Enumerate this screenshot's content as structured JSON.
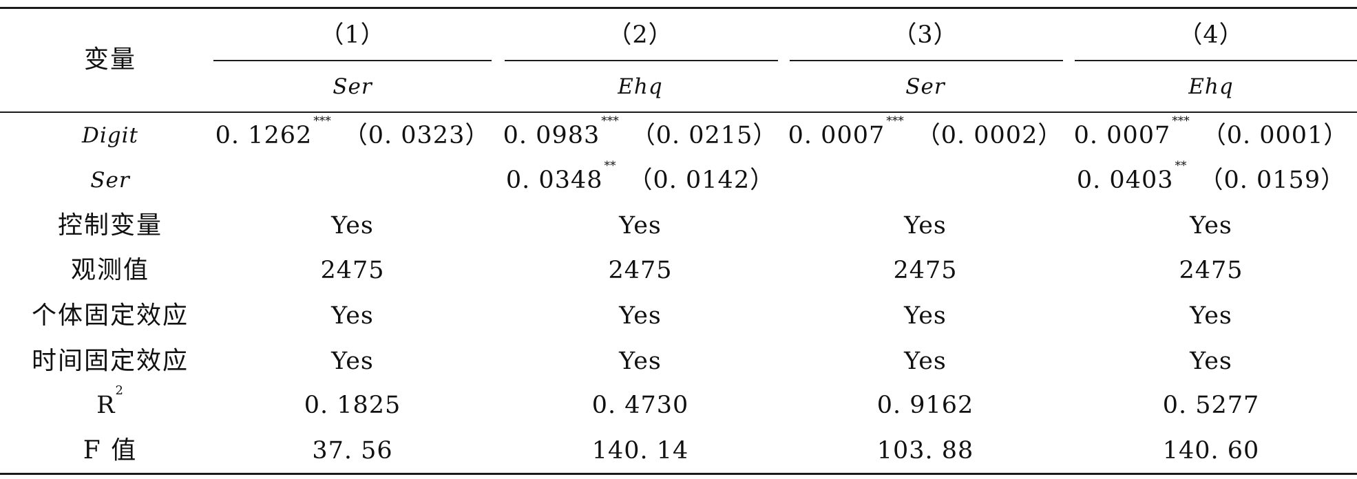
{
  "header": {
    "variable_label": "变量",
    "columns": [
      {
        "number": "（1）",
        "dependent": "Ser"
      },
      {
        "number": "（2）",
        "dependent": "Ehq"
      },
      {
        "number": "（3）",
        "dependent": "Ser"
      },
      {
        "number": "（4）",
        "dependent": "Ehq"
      }
    ]
  },
  "rows": {
    "digit": {
      "label": "Digit",
      "cells": [
        {
          "coef": "0. 1262",
          "stars": "***",
          "se": "（0. 0323）"
        },
        {
          "coef": "0. 0983",
          "stars": "***",
          "se": "（0. 0215）"
        },
        {
          "coef": "0. 0007",
          "stars": "***",
          "se": "（0. 0002）"
        },
        {
          "coef": "0. 0007",
          "stars": "***",
          "se": "（0. 0001）"
        }
      ]
    },
    "ser": {
      "label": "Ser",
      "cells": [
        {
          "coef": "0. 0348",
          "stars": "**",
          "se": "（0. 0142）"
        },
        {
          "coef": "0. 0403",
          "stars": "**",
          "se": "（0. 0159）"
        }
      ]
    },
    "controls": {
      "label": "控制变量",
      "values": [
        "Yes",
        "Yes",
        "Yes",
        "Yes"
      ]
    },
    "observations": {
      "label": "观测值",
      "values": [
        "2475",
        "2475",
        "2475",
        "2475"
      ]
    },
    "individual_fe": {
      "label": "个体固定效应",
      "values": [
        "Yes",
        "Yes",
        "Yes",
        "Yes"
      ]
    },
    "time_fe": {
      "label": "时间固定效应",
      "values": [
        "Yes",
        "Yes",
        "Yes",
        "Yes"
      ]
    },
    "r2": {
      "label_base": "R",
      "label_exp": "2",
      "values": [
        "0. 1825",
        "0. 4730",
        "0. 9162",
        "0. 5277"
      ]
    },
    "f": {
      "label": "F 值",
      "values": [
        "37. 56",
        "140. 14",
        "103. 88",
        "140. 60"
      ]
    }
  }
}
